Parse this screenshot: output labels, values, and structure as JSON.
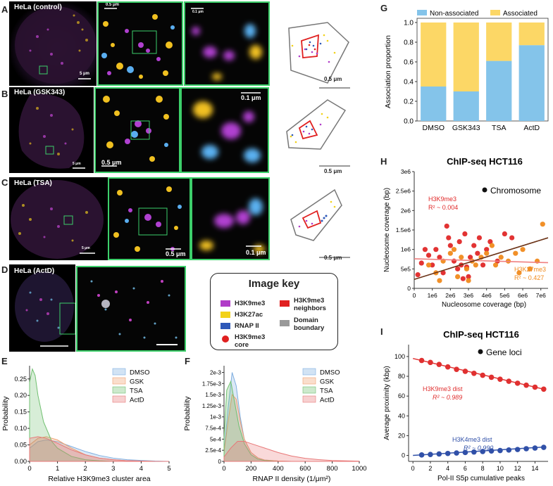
{
  "panels": {
    "A": "A",
    "B": "B",
    "C": "C",
    "D": "D",
    "E": "E",
    "F": "F",
    "G": "G",
    "H": "H",
    "I": "I"
  },
  "rows": {
    "A": {
      "title": "HeLa (control)",
      "scale1": "5 μm",
      "scale2": "0.5 μm",
      "scale3": "0.1 μm",
      "domain_scale": "0.5 μm"
    },
    "B": {
      "title": "HeLa (GSK343)",
      "scale1": "5 μm",
      "scale2": "0.5 μm",
      "scale3": "0.1 μm",
      "domain_scale": "0.5 μm"
    },
    "C": {
      "title": "HeLa (TSA)",
      "scale1": "5 μm",
      "scale2": "0.5 μm",
      "scale3": "0.1 μm",
      "domain_scale": "0.5 μm"
    },
    "D": {
      "title": "HeLa (ActD)"
    }
  },
  "image_key": {
    "title": "Image key",
    "items": [
      {
        "label": "H3K9me3",
        "color": "#b03cc8"
      },
      {
        "label": "H3K27ac",
        "color": "#f2d21a"
      },
      {
        "label": "RNAP II",
        "color": "#2d58b8"
      },
      {
        "label": "H3K9me3 core",
        "color": "#e02020"
      },
      {
        "label": "H3K9me3 neighbors",
        "color": "#e02020"
      },
      {
        "label": "Domain boundary",
        "color": "#999999"
      }
    ]
  },
  "chart_data": [
    {
      "id": "G",
      "type": "bar",
      "stacked": true,
      "categories": [
        "DMSO",
        "GSK343",
        "TSA",
        "ActD"
      ],
      "series": [
        {
          "name": "Non-associated",
          "color": "#84c4ea",
          "values": [
            0.35,
            0.3,
            0.61,
            0.77
          ]
        },
        {
          "name": "Associated",
          "color": "#fcd766",
          "values": [
            0.65,
            0.7,
            0.39,
            0.23
          ]
        }
      ],
      "ylabel": "Association proportion",
      "yticks": [
        "0.0",
        "0.2",
        "0.4",
        "0.6",
        "0.8",
        "1.0"
      ],
      "ylim": [
        0,
        1
      ]
    },
    {
      "id": "H",
      "type": "scatter",
      "title": "ChIP-seq HCT116",
      "legend": "Chromosome",
      "xlabel": "Nucleosome coverage (bp)",
      "ylabel": "Nucleosome coverage (bp)",
      "xticks": [
        "0",
        "1e6",
        "2e6",
        "3e6",
        "4e6",
        "5e6",
        "6e6",
        "7e6"
      ],
      "yticks": [
        "0",
        "5e5",
        "1e6",
        "1.5e6",
        "2e6",
        "2.5e6",
        "3e6"
      ],
      "xlim": [
        0,
        7400000.0
      ],
      "ylim": [
        0,
        3000000.0
      ],
      "series": [
        {
          "name": "H3K9me3",
          "color": "#e02828",
          "r2": "R² ~ 0.004",
          "fit": [
            [
              0,
              760000.0
            ],
            [
              7400000.0,
              660000.0
            ]
          ],
          "points": [
            [
              200000.0,
              350000.0
            ],
            [
              400000.0,
              650000.0
            ],
            [
              600000.0,
              1000000.0
            ],
            [
              800000.0,
              850000.0
            ],
            [
              1000000.0,
              600000.0
            ],
            [
              1200000.0,
              1000000.0
            ],
            [
              1400000.0,
              800000.0
            ],
            [
              1600000.0,
              400000.0
            ],
            [
              1800000.0,
              1600000.0
            ],
            [
              2000000.0,
              1100000.0
            ],
            [
              2200000.0,
              700000.0
            ],
            [
              2400000.0,
              500000.0
            ],
            [
              2500000.0,
              1200000.0
            ],
            [
              2600000.0,
              600000.0
            ],
            [
              2800000.0,
              1400000.0
            ],
            [
              3000000.0,
              300000.0
            ],
            [
              3100000.0,
              800000.0
            ],
            [
              3300000.0,
              1100000.0
            ],
            [
              3500000.0,
              900000.0
            ],
            [
              3600000.0,
              1300000.0
            ],
            [
              3800000.0,
              600000.0
            ],
            [
              4000000.0,
              1000000.0
            ],
            [
              4200000.0,
              1200000.0
            ],
            [
              4600000.0,
              700000.0
            ],
            [
              5000000.0,
              1400000.0
            ],
            [
              5400000.0,
              1300000.0
            ],
            [
              2900000.0,
              550000.0
            ],
            [
              2700000.0,
              250000.0
            ],
            [
              1900000.0,
              1300000.0
            ]
          ]
        },
        {
          "name": "H3K27me3",
          "color": "#f08a1c",
          "r2": "R² ~ 0.427",
          "fit": [
            [
              0,
              230000.0
            ],
            [
              7400000.0,
              1300000.0
            ]
          ],
          "points": [
            [
              800000.0,
              600000.0
            ],
            [
              1200000.0,
              400000.0
            ],
            [
              1600000.0,
              700000.0
            ],
            [
              2000000.0,
              900000.0
            ],
            [
              2200000.0,
              1000000.0
            ],
            [
              2600000.0,
              800000.0
            ],
            [
              2900000.0,
              500000.0
            ],
            [
              3200000.0,
              700000.0
            ],
            [
              3400000.0,
              600000.0
            ],
            [
              3700000.0,
              800000.0
            ],
            [
              4000000.0,
              900000.0
            ],
            [
              4300000.0,
              1100000.0
            ],
            [
              4500000.0,
              600000.0
            ],
            [
              4800000.0,
              800000.0
            ],
            [
              5200000.0,
              700000.0
            ],
            [
              5600000.0,
              900000.0
            ],
            [
              6000000.0,
              1000000.0
            ],
            [
              6400000.0,
              500000.0
            ],
            [
              6800000.0,
              700000.0
            ],
            [
              7100000.0,
              1650000.0
            ],
            [
              5800000.0,
              400000.0
            ],
            [
              3000000.0,
              200000.0
            ],
            [
              2400000.0,
              300000.0
            ],
            [
              1400000.0,
              200000.0
            ]
          ]
        }
      ],
      "fit_color": "#6b3317"
    },
    {
      "id": "I",
      "type": "line",
      "title": "ChIP-seq HCT116",
      "legend": "Gene loci",
      "xlabel": "Pol-II S5p cumulative peaks",
      "ylabel": "Average proximity (kbp)",
      "xticks": [
        "0",
        "2",
        "4",
        "6",
        "8",
        "10",
        "12",
        "14"
      ],
      "yticks": [
        "0",
        "20",
        "40",
        "60",
        "80",
        "100"
      ],
      "xlim": [
        -0.5,
        15.5
      ],
      "ylim": [
        -6,
        112
      ],
      "x": [
        1,
        2,
        3,
        4,
        5,
        6,
        7,
        8,
        9,
        10,
        11,
        12,
        13,
        14,
        15
      ],
      "series": [
        {
          "name": "H3K9me3 dist",
          "color": "#e03030",
          "r2": "R² ~ 0.989",
          "values": [
            96,
            94,
            92,
            89.5,
            87,
            85,
            83,
            81,
            79,
            77,
            75,
            73,
            71,
            69,
            67
          ],
          "fit": [
            [
              0,
              98
            ],
            [
              15,
              67
            ]
          ]
        },
        {
          "name": "H3K4me3 dist",
          "color": "#3050a8",
          "r2": "R² ~ 0.990",
          "values": [
            0.5,
            1.0,
            1.5,
            2.0,
            2.5,
            3.0,
            3.5,
            4.0,
            4.5,
            5.0,
            5.5,
            6.0,
            6.8,
            7.5,
            8.2
          ],
          "fit": [
            [
              0,
              0
            ],
            [
              15,
              8.5
            ]
          ]
        }
      ]
    },
    {
      "id": "E",
      "type": "area",
      "xlabel": "Relative H3K9me3 cluster area",
      "ylabel": "Probability",
      "xticks": [
        "0",
        "1",
        "2",
        "3",
        "4",
        "5"
      ],
      "yticks": [
        "0.00",
        "0.05",
        "0.10",
        "0.15",
        "0.20",
        "0.25"
      ],
      "xlim": [
        0,
        5
      ],
      "ylim": [
        0,
        0.29
      ],
      "series": [
        {
          "name": "DMSO",
          "color": "#7eaee0",
          "x": [
            0,
            0.3,
            0.6,
            1.0,
            1.5,
            2.0,
            2.5,
            3.0,
            3.5,
            4.0,
            4.5,
            5.0
          ],
          "y": [
            0.04,
            0.06,
            0.065,
            0.06,
            0.045,
            0.03,
            0.018,
            0.01,
            0.005,
            0.003,
            0.001,
            0
          ]
        },
        {
          "name": "GSK",
          "color": "#f0a070",
          "x": [
            0,
            0.3,
            0.6,
            1.0,
            1.5,
            2.0,
            2.5,
            3.0,
            3.5,
            4.0,
            4.5,
            5.0
          ],
          "y": [
            0.05,
            0.07,
            0.075,
            0.065,
            0.04,
            0.02,
            0.01,
            0.005,
            0.002,
            0.001,
            0,
            0
          ]
        },
        {
          "name": "TSA",
          "color": "#70c070",
          "x": [
            0,
            0.1,
            0.2,
            0.3,
            0.5,
            0.8,
            1.0,
            1.5,
            2.0,
            2.5,
            3.0,
            5.0
          ],
          "y": [
            0.24,
            0.28,
            0.26,
            0.2,
            0.12,
            0.06,
            0.04,
            0.015,
            0.005,
            0.002,
            0,
            0
          ]
        },
        {
          "name": "ActD",
          "color": "#e87878",
          "x": [
            0,
            0.3,
            0.6,
            1.0,
            1.5,
            2.0,
            2.5,
            3.0,
            3.5,
            4.0,
            4.5,
            5.0
          ],
          "y": [
            0.07,
            0.075,
            0.07,
            0.055,
            0.035,
            0.02,
            0.01,
            0.005,
            0.002,
            0.001,
            0,
            0
          ]
        }
      ]
    },
    {
      "id": "F",
      "type": "area",
      "xlabel": "RNAP II density (1/μm²)",
      "ylabel": "Probability",
      "xticks": [
        "0",
        "200",
        "400",
        "600",
        "800",
        "1000"
      ],
      "yticks": [
        "0",
        "2.5e-4",
        "5e-4",
        "7.5e-4",
        "1e-3",
        "1.25e-3",
        "1.5e-3",
        "1.75e-3",
        "2e-3"
      ],
      "xlim": [
        0,
        1000
      ],
      "ylim": [
        0,
        0.00215
      ],
      "series": [
        {
          "name": "DMSO",
          "color": "#7eaee0",
          "x": [
            0,
            30,
            60,
            90,
            120,
            150,
            200,
            250,
            300,
            400,
            500,
            1000
          ],
          "y": [
            0.0002,
            0.0012,
            0.002,
            0.0017,
            0.001,
            0.0005,
            0.0002,
            8e-05,
            3e-05,
            1e-05,
            0,
            0
          ]
        },
        {
          "name": "GSK",
          "color": "#f0a070",
          "x": [
            0,
            30,
            60,
            90,
            120,
            150,
            200,
            250,
            300,
            400,
            500,
            1000
          ],
          "y": [
            0.0002,
            0.0009,
            0.0015,
            0.0014,
            0.0009,
            0.0005,
            0.0002,
            8e-05,
            3e-05,
            1e-05,
            0,
            0
          ]
        },
        {
          "name": "TSA",
          "color": "#70c070",
          "x": [
            0,
            20,
            50,
            80,
            110,
            150,
            200,
            250,
            300,
            400,
            500,
            1000
          ],
          "y": [
            0.0005,
            0.0016,
            0.0018,
            0.0013,
            0.0008,
            0.0004,
            0.00015,
            5e-05,
            2e-05,
            0,
            0,
            0
          ]
        },
        {
          "name": "ActD",
          "color": "#e87878",
          "x": [
            0,
            50,
            100,
            150,
            200,
            300,
            400,
            500,
            600,
            700,
            800,
            1000
          ],
          "y": [
            0.0001,
            0.0003,
            0.00045,
            0.00045,
            0.0004,
            0.0003,
            0.0002,
            0.00012,
            7e-05,
            4e-05,
            2e-05,
            5e-06
          ]
        }
      ]
    }
  ]
}
